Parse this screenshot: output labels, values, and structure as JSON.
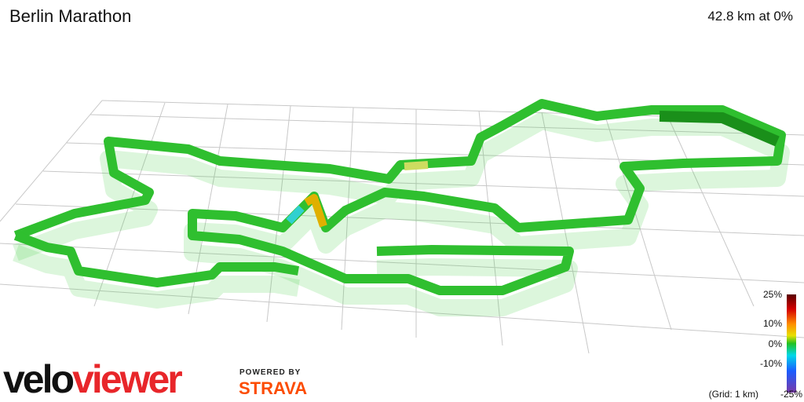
{
  "header": {
    "title": "Berlin Marathon",
    "summary": "42.8 km at 0%"
  },
  "legend": {
    "ticks": [
      "25%",
      "10%",
      "0%",
      "-10%",
      "-25%"
    ],
    "grid_note": "(Grid: 1 km)"
  },
  "logo": {
    "velo": "velo",
    "viewer": "viewer",
    "powered_by": "POWERED BY",
    "strava": "STRAVA"
  }
}
